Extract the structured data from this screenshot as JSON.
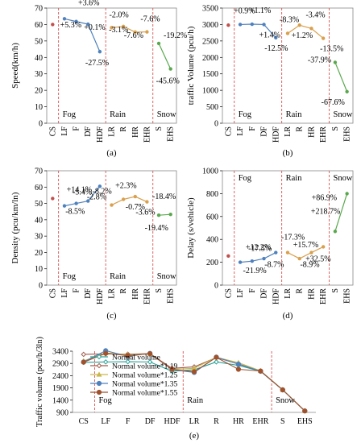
{
  "chart_data": [
    {
      "panel": "(a)",
      "type": "line",
      "ylabel": "Speed(km/h)",
      "ylim": [
        0,
        70
      ],
      "yticks": [
        0,
        10,
        20,
        30,
        40,
        50,
        60,
        70
      ],
      "categories": [
        "CS",
        "LF",
        "F",
        "DF",
        "HDF",
        "LR",
        "R",
        "HR",
        "EHR",
        "S",
        "EHS"
      ],
      "zones": [
        {
          "name": "Fog",
          "start": 1
        },
        {
          "name": "Rain",
          "start": 5
        },
        {
          "name": "Snow",
          "start": 9
        }
      ],
      "control": {
        "color": "#c0504d",
        "value": 60
      },
      "groups": [
        {
          "color": "#4f81bd",
          "x": [
            1,
            2,
            3,
            4
          ],
          "values": [
            63.5,
            61.8,
            60.2,
            43.5
          ]
        },
        {
          "color": "#d9a04d",
          "x": [
            5,
            6,
            7,
            8
          ],
          "values": [
            58.1,
            58.8,
            55.4,
            55.5
          ]
        },
        {
          "color": "#5aa84e",
          "x": [
            9,
            10
          ],
          "values": [
            48.5,
            33.0
          ]
        }
      ],
      "annotations": [
        "+3.6%",
        "+5.3%",
        "+0.1%",
        "-27.5%",
        "-2.0%",
        "-3.1%",
        "-7.6%",
        "-7.6%",
        "-19.2%",
        "-45.6%"
      ]
    },
    {
      "panel": "(b)",
      "type": "line",
      "ylabel": "traffic Volume (pcu/h)",
      "ylim": [
        0,
        3500
      ],
      "yticks": [
        0,
        500,
        1000,
        1500,
        2000,
        2500,
        3000,
        3500
      ],
      "categories": [
        "CS",
        "LF",
        "F",
        "DF",
        "HDF",
        "LR",
        "R",
        "HR",
        "EHR",
        "S",
        "EHS"
      ],
      "zones": [
        {
          "name": "Fog",
          "start": 1
        },
        {
          "name": "Rain",
          "start": 5
        },
        {
          "name": "Snow",
          "start": 9
        }
      ],
      "control": {
        "color": "#c0504d",
        "value": 2980
      },
      "groups": [
        {
          "color": "#4f81bd",
          "x": [
            1,
            2,
            3,
            4
          ],
          "values": [
            3000,
            3010,
            3000,
            2600
          ]
        },
        {
          "color": "#d9a04d",
          "x": [
            5,
            6,
            7,
            8
          ],
          "values": [
            2730,
            2980,
            2880,
            2580
          ]
        },
        {
          "color": "#5aa84e",
          "x": [
            9,
            10
          ],
          "values": [
            1850,
            960
          ]
        }
      ],
      "annotations": [
        "+0.9%",
        "+1.1%",
        "+1.4%",
        "-12.5%",
        "-8.3%",
        "+1.2%",
        "-3.4%",
        "-13.5%",
        "-37.9%",
        "-67.6%"
      ]
    },
    {
      "panel": "(c)",
      "type": "line",
      "ylabel": "Density (pcu/km/ln)",
      "ylim": [
        0,
        70
      ],
      "yticks": [
        0,
        10,
        20,
        30,
        40,
        50,
        60,
        70
      ],
      "categories": [
        "CS",
        "LF",
        "F",
        "DF",
        "HDF",
        "LR",
        "R",
        "HR",
        "EHR",
        "S",
        "EHS"
      ],
      "zones": [
        {
          "name": "Fog",
          "start": 1
        },
        {
          "name": "Rain",
          "start": 5
        },
        {
          "name": "Snow",
          "start": 9
        }
      ],
      "control": {
        "color": "#c0504d",
        "value": 53
      },
      "groups": [
        {
          "color": "#4f81bd",
          "x": [
            1,
            2,
            3,
            4
          ],
          "values": [
            48.5,
            50.0,
            51.5,
            60.5
          ]
        },
        {
          "color": "#d9a04d",
          "x": [
            5,
            6,
            7,
            8
          ],
          "values": [
            49.0,
            52.5,
            54.2,
            51.0
          ]
        },
        {
          "color": "#5aa84e",
          "x": [
            9,
            10
          ],
          "values": [
            42.8,
            43.3
          ]
        }
      ],
      "annotations": [
        "-5.4%",
        "+14.1%",
        "-8.5%",
        "-2.8%",
        "-8.2%",
        "+2.3%",
        "-0.7%",
        "-3.6%",
        "-18.4%",
        "-19.4%"
      ]
    },
    {
      "panel": "(d)",
      "type": "line",
      "ylabel": "Delay (s/vehicle)",
      "ylim": [
        0,
        1000
      ],
      "yticks": [
        0,
        200,
        400,
        600,
        800,
        1000
      ],
      "categories": [
        "CS",
        "LF",
        "F",
        "DF",
        "HDF",
        "LR",
        "R",
        "HR",
        "EHR",
        "S",
        "EHS"
      ],
      "zones": [
        {
          "name": "Fog",
          "start": 1
        },
        {
          "name": "Rain",
          "start": 5
        },
        {
          "name": "Snow",
          "start": 9
        }
      ],
      "control": {
        "color": "#c0504d",
        "value": 255
      },
      "groups": [
        {
          "color": "#4f81bd",
          "x": [
            1,
            2,
            3,
            4
          ],
          "values": [
            200,
            210,
            232,
            285
          ]
        },
        {
          "color": "#d9a04d",
          "x": [
            5,
            6,
            7,
            8
          ],
          "values": [
            285,
            232,
            285,
            335
          ]
        },
        {
          "color": "#5aa84e",
          "x": [
            9,
            10
          ],
          "values": [
            470,
            800
          ]
        }
      ],
      "annotations": [
        "-17.5%",
        "+12.2%",
        "-21.9%",
        "-8.7%",
        "-17.3%",
        "+15.7%",
        "-8.9%",
        "+32.5%",
        "+218.7%",
        "+86.9%"
      ]
    },
    {
      "panel": "(e)",
      "type": "line",
      "ylabel": "Traffic volume (pcu/h/3ln)",
      "ylim": [
        900,
        3400
      ],
      "yticks": [
        900,
        1400,
        1900,
        2400,
        2900,
        3400
      ],
      "categories": [
        "CS",
        "LF",
        "F",
        "DF",
        "HDF",
        "LR",
        "R",
        "HR",
        "EHR",
        "S",
        "EHS"
      ],
      "zones": [
        {
          "name": "Fog",
          "start": 1
        },
        {
          "name": "Rain",
          "start": 5
        },
        {
          "name": "Snow",
          "start": 9
        }
      ],
      "legend_position": "center-left",
      "series": [
        {
          "name": "Normal volume",
          "color": "#2aa198",
          "marker": "diamond",
          "values": [
            2940,
            2960,
            2970,
            2960,
            2580,
            2640,
            2960,
            2820,
            2580,
            1820,
            960
          ]
        },
        {
          "name": "Normal volume*1.19",
          "color": "#a05a4a",
          "marker": "diamond",
          "values": [
            3270,
            3290,
            3280,
            3300,
            2700,
            2760,
            3140,
            2880,
            2590,
            1820,
            960
          ]
        },
        {
          "name": "Normal volume*1.25",
          "color": "#c9b84a",
          "marker": "triangle",
          "values": [
            3000,
            3330,
            3260,
            3290,
            2660,
            2700,
            3150,
            2930,
            2600,
            1820,
            960
          ]
        },
        {
          "name": "Normal volume*1.35",
          "color": "#4f81bd",
          "marker": "circle",
          "values": [
            2960,
            3420,
            3190,
            3310,
            2650,
            2530,
            3160,
            2870,
            2580,
            1820,
            960
          ]
        },
        {
          "name": "Normal volume*1.55",
          "color": "#a0522d",
          "marker": "circle",
          "values": [
            2950,
            3310,
            3220,
            3300,
            2660,
            2560,
            3150,
            2660,
            2590,
            1820,
            960
          ]
        }
      ]
    }
  ]
}
